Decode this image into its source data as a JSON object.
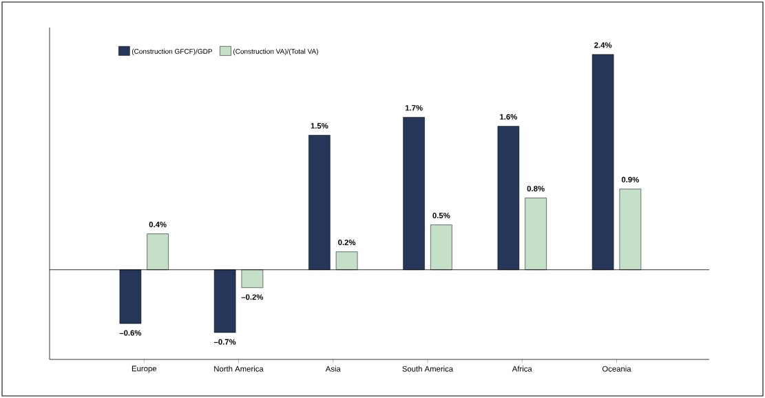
{
  "chart_data": {
    "type": "bar",
    "categories": [
      "Europe",
      "North America",
      "Asia",
      "South America",
      "Africa",
      "Oceania"
    ],
    "series": [
      {
        "name": "(Construction GFCF)/GDP",
        "color": "#253659",
        "values": [
          -0.6,
          -0.7,
          1.5,
          1.7,
          1.6,
          2.4
        ],
        "value_labels": [
          "–0.6%",
          "–0.7%",
          "1.5%",
          "1.7%",
          "1.6%",
          "2.4%"
        ]
      },
      {
        "name": "(Construction VA)/(Total VA)",
        "color": "#c5e0c9",
        "values": [
          0.4,
          -0.2,
          0.2,
          0.5,
          0.8,
          0.9
        ],
        "value_labels": [
          "0.4%",
          "–0.2%",
          "0.2%",
          "0.5%",
          "0.8%",
          "0.9%"
        ]
      }
    ],
    "ylim": [
      -1.0,
      2.7
    ],
    "legend": "top left",
    "tick_labels": "x",
    "grid": false
  }
}
